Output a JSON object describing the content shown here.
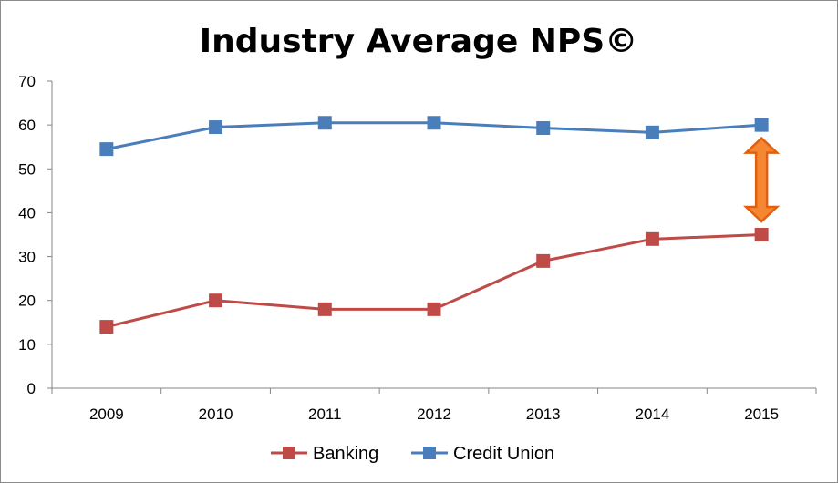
{
  "chart_data": {
    "type": "line",
    "title": "Industry Average NPS©",
    "xlabel": "",
    "ylabel": "",
    "categories": [
      "2009",
      "2010",
      "2011",
      "2012",
      "2013",
      "2014",
      "2015"
    ],
    "ylim": [
      0,
      70
    ],
    "yticks": [
      0,
      10,
      20,
      30,
      40,
      50,
      60,
      70
    ],
    "grid": false,
    "legend_position": "bottom",
    "series": [
      {
        "name": "Banking",
        "color": "#be4b48",
        "values": [
          14,
          20,
          18,
          18,
          29,
          34,
          35
        ]
      },
      {
        "name": "Credit Union",
        "color": "#4a7ebb",
        "values": [
          54.5,
          59.5,
          60.5,
          60.5,
          59.3,
          58.3,
          60
        ]
      }
    ],
    "annotation": {
      "type": "double-arrow",
      "category": "2015",
      "from_value": 38,
      "to_value": 57,
      "fill": "#f58733",
      "stroke": "#e06010"
    }
  }
}
